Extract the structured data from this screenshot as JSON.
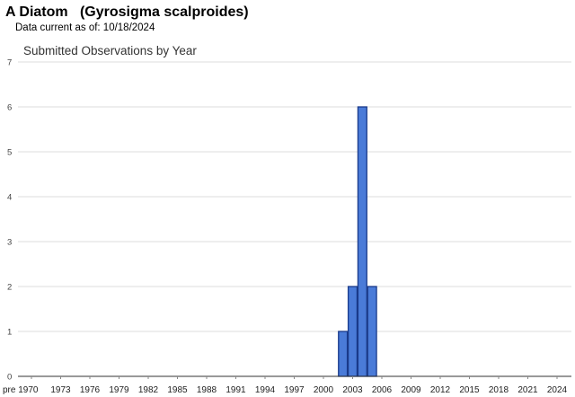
{
  "header": {
    "title": "A Diatom   (Gyrosigma scalproides)",
    "subtitle": "Data current as of: 10/18/2024"
  },
  "chart_data": {
    "type": "bar",
    "title": "Submitted Observations by Year",
    "xlabel": "",
    "ylabel": "",
    "ylim": [
      0,
      7
    ],
    "yticks": [
      0,
      1,
      2,
      3,
      4,
      5,
      6,
      7
    ],
    "grid": true,
    "legend": "none",
    "bar_color": "#4a7bd8",
    "bar_edge_color": "#1a3a8a",
    "x_tick_labels": [
      "pre 1970",
      "1973",
      "1976",
      "1979",
      "1982",
      "1985",
      "1988",
      "1991",
      "1994",
      "1997",
      "2000",
      "2003",
      "2006",
      "2009",
      "2012",
      "2015",
      "2018",
      "2021",
      "2024"
    ],
    "categories": [
      "2002",
      "2003",
      "2004",
      "2005"
    ],
    "values": [
      1,
      2,
      6,
      2
    ]
  }
}
